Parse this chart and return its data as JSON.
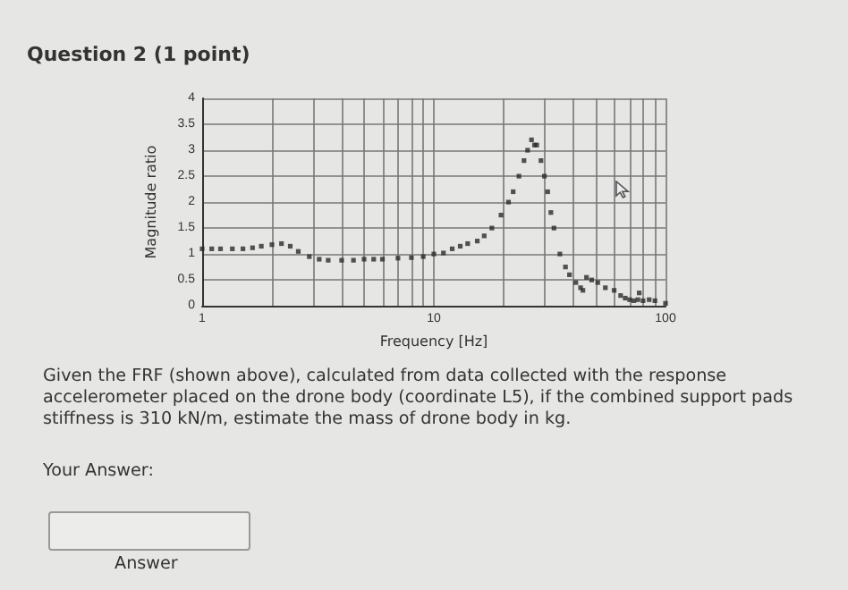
{
  "chart_data": {
    "type": "scatter",
    "title": "Question 2 (1 point)",
    "xlabel": "Frequency [Hz]",
    "ylabel": "Magnitude ratio",
    "annotations": [
      "Given the FRF (shown above), calculated from data collected with the response accelerometer placed on the drone body (coordinate L5), if the combined support pads stiffness is 310 kN/m, estimate the mass of drone body in kg.",
      "Your Answer:",
      "Answer"
    ],
    "x": [
      1,
      1.1,
      1.2,
      1.35,
      1.5,
      1.65,
      1.8,
      2,
      2.2,
      2.4,
      2.6,
      2.9,
      3.2,
      3.5,
      4,
      4.5,
      5,
      5.5,
      6,
      7,
      8,
      9,
      10,
      11,
      12,
      13,
      14,
      15.4,
      16.5,
      17.8,
      19.5,
      21,
      22,
      23.3,
      24.5,
      25.4,
      26.4,
      27.2,
      27.8,
      29,
      30,
      31,
      32,
      33,
      35,
      37,
      38.5,
      41,
      43,
      44,
      45.6,
      48,
      51,
      55,
      60,
      64,
      67,
      70,
      73,
      76,
      77,
      80,
      85,
      90,
      100
    ],
    "values": [
      1.1,
      1.1,
      1.1,
      1.1,
      1.1,
      1.12,
      1.15,
      1.18,
      1.2,
      1.15,
      1.05,
      0.95,
      0.9,
      0.88,
      0.88,
      0.88,
      0.9,
      0.9,
      0.9,
      0.92,
      0.93,
      0.95,
      1,
      1.02,
      1.1,
      1.15,
      1.2,
      1.25,
      1.35,
      1.5,
      1.75,
      2,
      2.2,
      2.5,
      2.8,
      3,
      3.2,
      3.1,
      3.1,
      2.8,
      2.5,
      2.2,
      1.8,
      1.5,
      1,
      0.75,
      0.6,
      0.45,
      0.35,
      0.3,
      0.55,
      0.5,
      0.45,
      0.35,
      0.3,
      0.2,
      0.15,
      0.12,
      0.1,
      0.12,
      0.25,
      0.1,
      0.12,
      0.1,
      0.05
    ],
    "color": "#2b2b2b",
    "marker": "square",
    "log": "x",
    "grid": true,
    "xlim": [
      1,
      100
    ],
    "xticks": [
      1,
      {
        "value": 2,
        "label": null
      },
      {
        "value": 3,
        "label": null
      },
      {
        "value": 4,
        "label": null
      },
      {
        "value": 5,
        "label": null
      },
      {
        "value": 6,
        "label": null
      },
      {
        "value": 7,
        "label": null
      },
      {
        "value": 8,
        "label": null
      },
      {
        "value": 9,
        "label": null
      },
      10,
      {
        "value": 20,
        "label": null
      },
      {
        "value": 30,
        "label": null
      },
      {
        "value": 40,
        "label": null
      },
      {
        "value": 50,
        "label": null
      },
      {
        "value": 60,
        "label": null
      },
      {
        "value": 70,
        "label": null
      },
      {
        "value": 80,
        "label": null
      },
      {
        "value": 90,
        "label": null
      },
      100
    ],
    "ylim": [
      0,
      4
    ],
    "yticks": [
      0,
      0.5,
      1,
      1.5,
      2,
      2.5,
      3,
      3.5,
      4
    ]
  }
}
